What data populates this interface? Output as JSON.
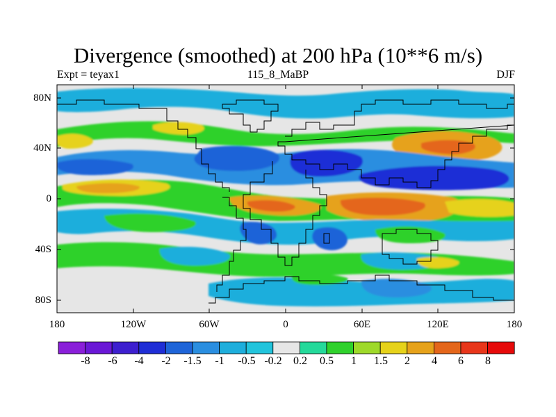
{
  "title": "Divergence (smoothed) at 200 hPa (10**6 m/s)",
  "subtitle_left": "Expt = teyax1",
  "subtitle_center": "115_8_MaBP",
  "subtitle_right": "DJF",
  "lat_ticks": [
    "80N",
    "40N",
    "0",
    "40S",
    "80S"
  ],
  "lon_ticks": [
    "180",
    "120W",
    "60W",
    "0",
    "60E",
    "120E",
    "180"
  ],
  "colorbar": {
    "labels": [
      "-8",
      "-6",
      "-4",
      "-2",
      "-1.5",
      "-1",
      "-0.5",
      "-0.2",
      "0.2",
      "0.5",
      "1",
      "1.5",
      "2",
      "4",
      "6",
      "8"
    ],
    "colors": [
      "#8a1fd9",
      "#6a18d6",
      "#3d1fcf",
      "#1f2ed6",
      "#1e64d8",
      "#2a8ee0",
      "#1eaedc",
      "#22c4dc",
      "#e6e6e6",
      "#24d99a",
      "#2fd12c",
      "#9ed92a",
      "#e6d21a",
      "#e6a21a",
      "#e4661a",
      "#e8361a",
      "#e60a0a"
    ]
  },
  "palette": {
    "background": "#e6e6e6",
    "weak_pos": "#24d99a",
    "mod_pos": "#2fd12c",
    "lime": "#9ed92a",
    "yellow": "#e6d21a",
    "orange": "#e6a21a",
    "dark_orange": "#e4661a",
    "weak_neg": "#22c4dc",
    "light_blue": "#1eaedc",
    "blue": "#2a8ee0",
    "mid_blue": "#1e64d8",
    "dark_blue": "#1f2ed6"
  }
}
